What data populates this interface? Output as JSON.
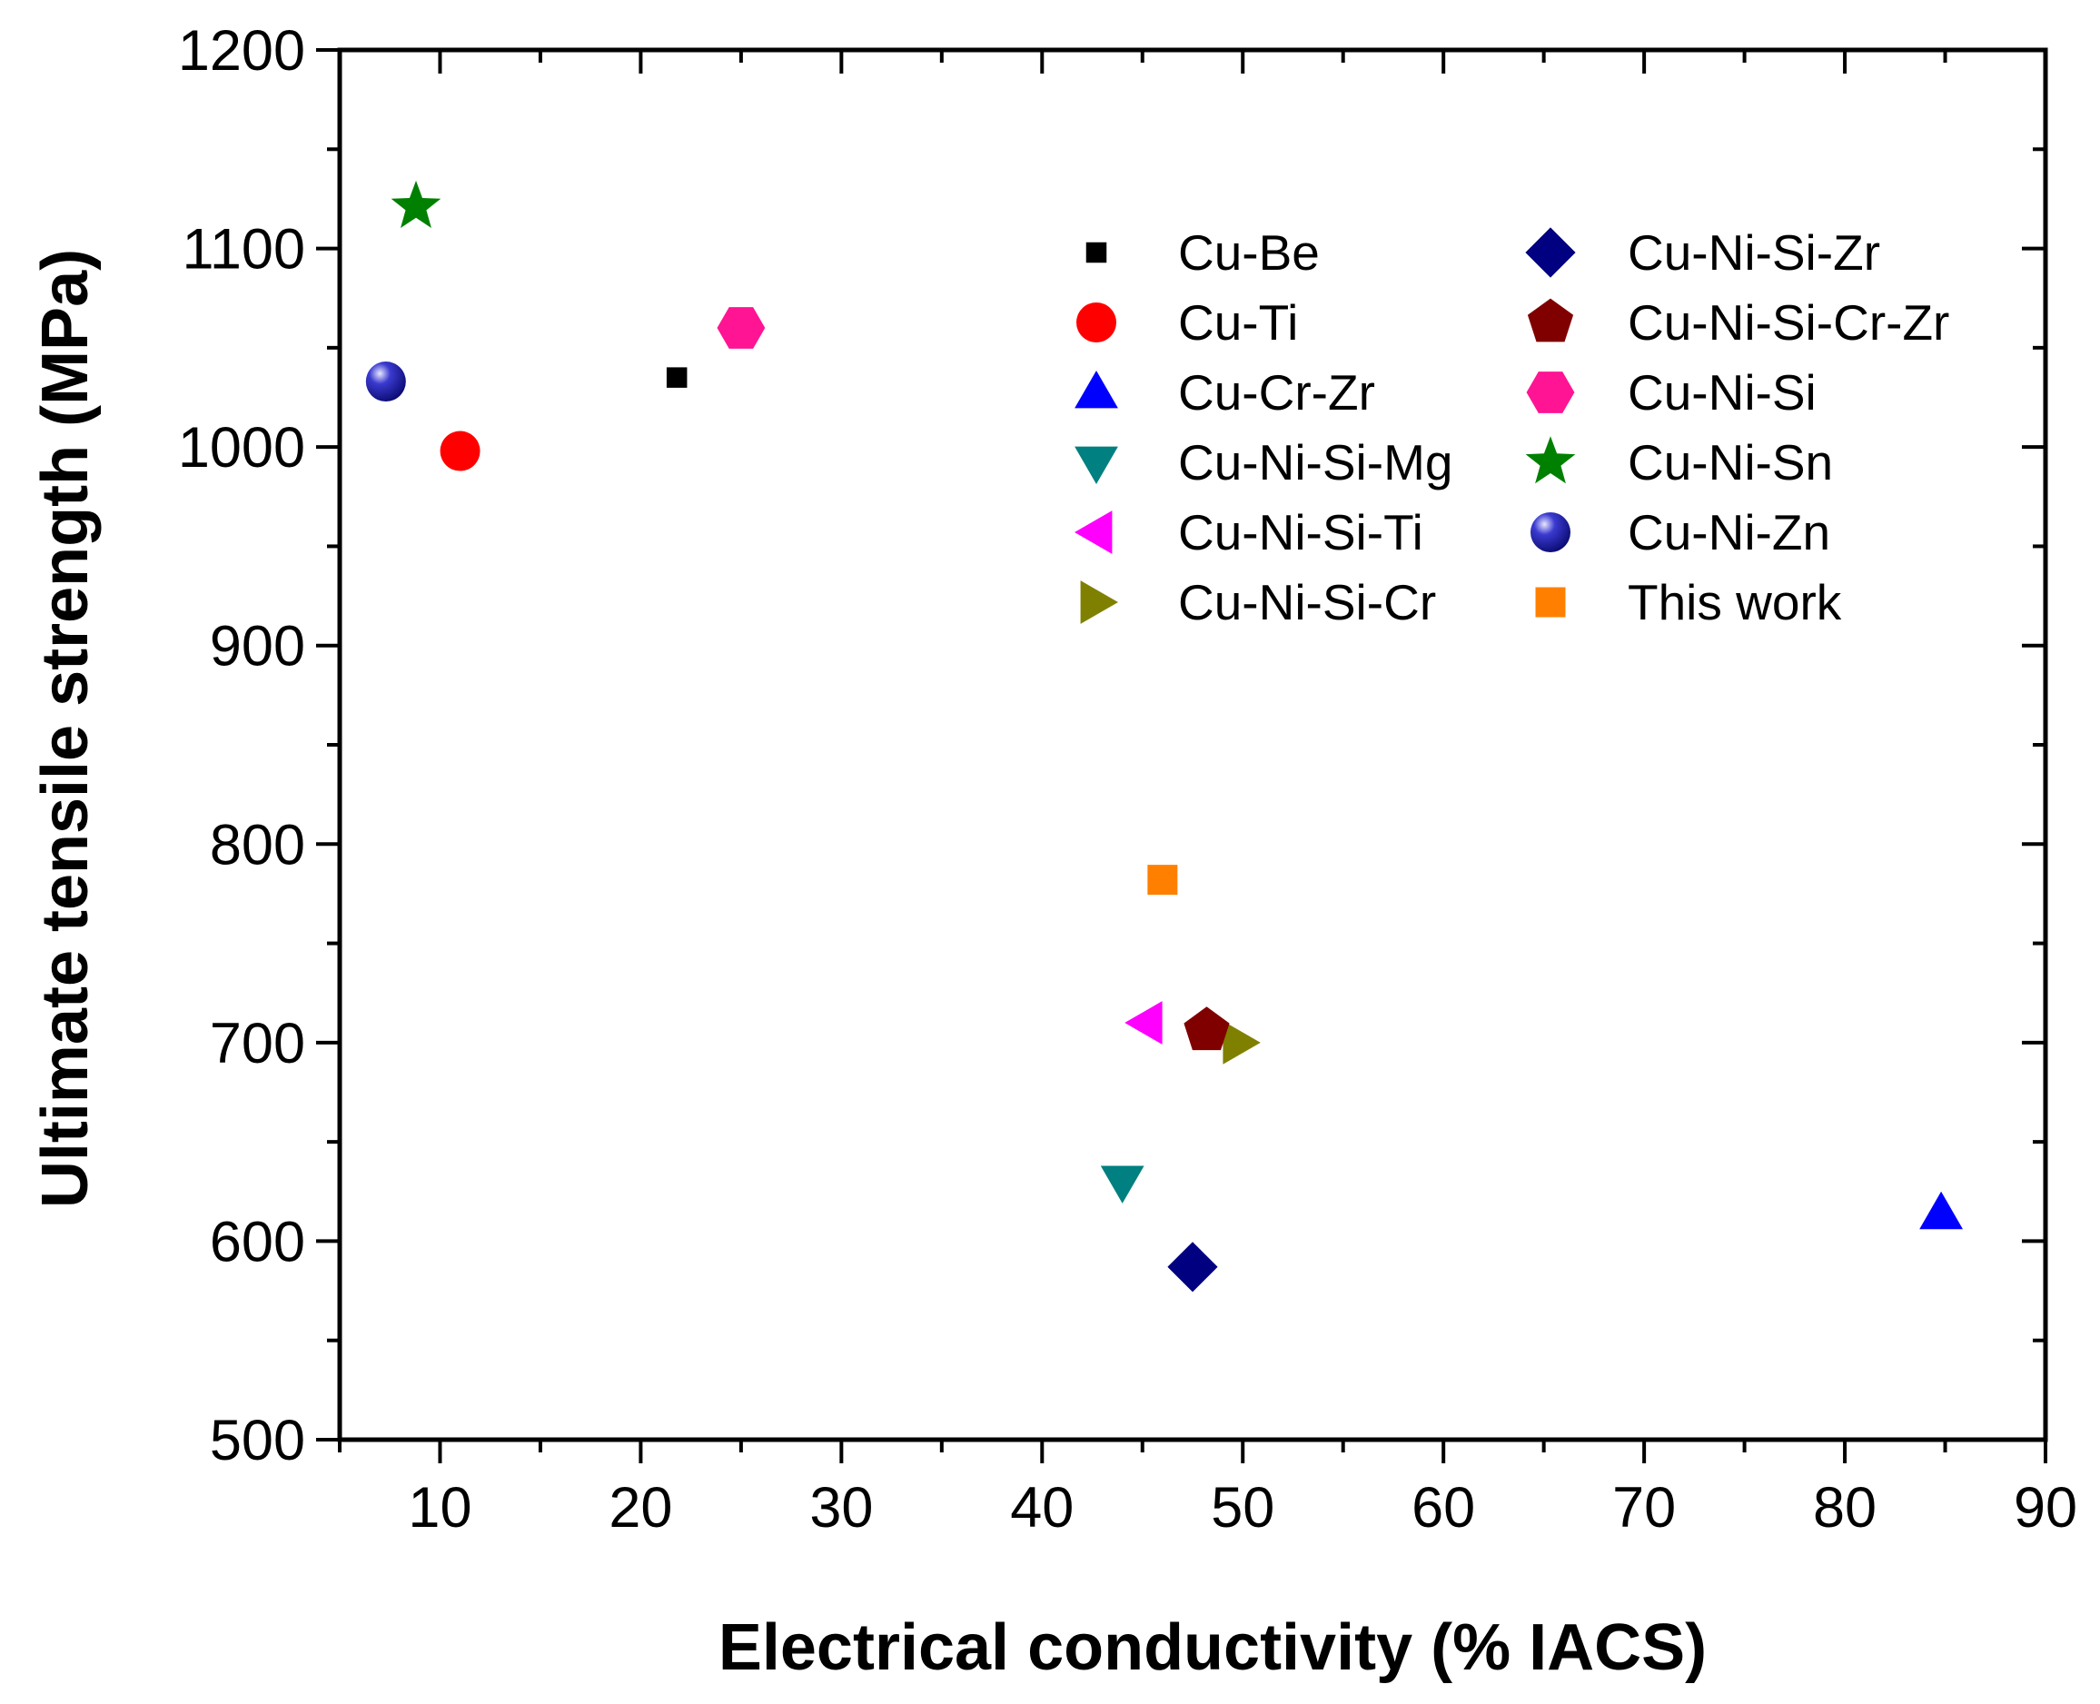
{
  "chart_data": {
    "type": "scatter",
    "title": "",
    "xlabel": "Electrical conductivity (% IACS)",
    "ylabel": "Ultimate tensile strength (MPa)",
    "xlim": [
      5,
      90
    ],
    "ylim": [
      500,
      1200
    ],
    "xticks": [
      10,
      20,
      30,
      40,
      50,
      60,
      70,
      80,
      90
    ],
    "yticks": [
      500,
      600,
      700,
      800,
      900,
      1000,
      1100,
      1200
    ],
    "grid": false,
    "legend_position": "top-right",
    "series": [
      {
        "name": "Cu-Be",
        "marker": "square",
        "color": "#000000",
        "x": [
          21.8
        ],
        "y": [
          1035
        ]
      },
      {
        "name": "Cu-Ti",
        "marker": "circle",
        "color": "#ff0000",
        "x": [
          11
        ],
        "y": [
          998
        ]
      },
      {
        "name": "Cu-Cr-Zr",
        "marker": "triangle-up",
        "color": "#0000ff",
        "x": [
          84.8
        ],
        "y": [
          614
        ]
      },
      {
        "name": "Cu-Ni-Si-Mg",
        "marker": "triangle-down",
        "color": "#008080",
        "x": [
          44
        ],
        "y": [
          630
        ]
      },
      {
        "name": "Cu-Ni-Si-Ti",
        "marker": "triangle-left",
        "color": "#ff00ff",
        "x": [
          45.2
        ],
        "y": [
          710
        ]
      },
      {
        "name": "Cu-Ni-Si-Cr",
        "marker": "triangle-right",
        "color": "#808000",
        "x": [
          49.8
        ],
        "y": [
          700
        ]
      },
      {
        "name": "Cu-Ni-Si-Zr",
        "marker": "diamond",
        "color": "#000080",
        "x": [
          47.5
        ],
        "y": [
          587
        ]
      },
      {
        "name": "Cu-Ni-Si-Cr-Zr",
        "marker": "pentagon",
        "color": "#800000",
        "x": [
          48.2
        ],
        "y": [
          706
        ]
      },
      {
        "name": "Cu-Ni-Si",
        "marker": "hexagon",
        "color": "#ff1493",
        "x": [
          25
        ],
        "y": [
          1060
        ]
      },
      {
        "name": "Cu-Ni-Sn",
        "marker": "star",
        "color": "#008000",
        "x": [
          8.8
        ],
        "y": [
          1121
        ]
      },
      {
        "name": "Cu-Ni-Zn",
        "marker": "sphere",
        "color": "#1010a0",
        "x": [
          7.3
        ],
        "y": [
          1033
        ]
      },
      {
        "name": "This work",
        "marker": "square",
        "color": "#ff8000",
        "x": [
          46
        ],
        "y": [
          782
        ]
      }
    ]
  }
}
